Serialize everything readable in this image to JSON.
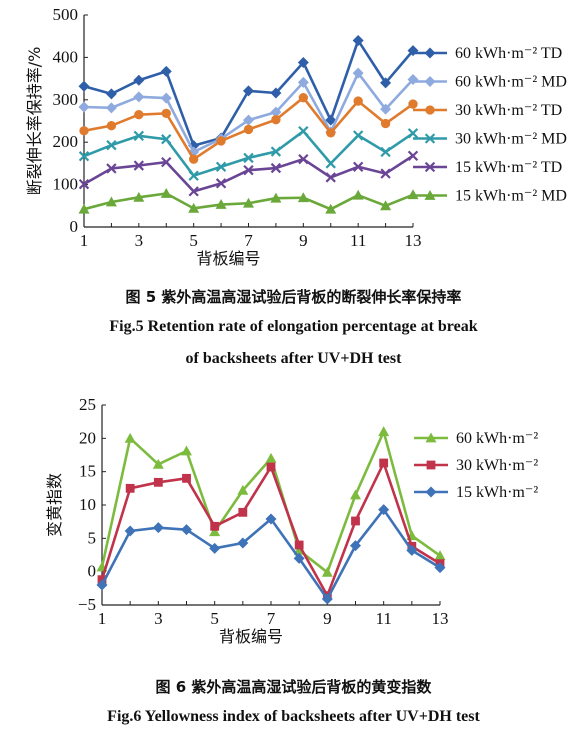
{
  "figure5": {
    "caption_zh": "图 5   紫外高温高湿试验后背板的断裂伸长率保持率",
    "caption_en_1": "Fig.5   Retention rate of elongation percentage at break",
    "caption_en_2": "of backsheets after UV+DH test"
  },
  "figure6": {
    "caption_zh": "图 6   紫外高温高湿试验后背板的黄变指数",
    "caption_en": "Fig.6   Yellowness index of backsheets after UV+DH test"
  },
  "chart_data": [
    {
      "type": "line",
      "xlabel": "背板编号",
      "ylabel": "断裂伸长率保持率/%",
      "xlim": [
        1,
        13
      ],
      "ylim": [
        0,
        500
      ],
      "xticks": [
        1,
        3,
        5,
        7,
        9,
        11,
        13
      ],
      "yticks": [
        0,
        100,
        200,
        300,
        400,
        500
      ],
      "grid": false,
      "legend_position": "top-right",
      "x": [
        1,
        2,
        3,
        4,
        5,
        6,
        7,
        8,
        9,
        10,
        11,
        12,
        13
      ],
      "series": [
        {
          "name": "60 kWh·m⁻² TD",
          "color": "#2f5fa8",
          "marker": "diamond",
          "values": [
            332,
            314,
            346,
            367,
            192,
            210,
            321,
            316,
            388,
            252,
            440,
            340,
            416
          ]
        },
        {
          "name": "60 kWh·m⁻² MD",
          "color": "#8eaadf",
          "marker": "diamond",
          "values": [
            283,
            281,
            307,
            304,
            177,
            208,
            252,
            271,
            341,
            224,
            363,
            278,
            348
          ]
        },
        {
          "name": "30 kWh·m⁻² TD",
          "color": "#e07b2e",
          "marker": "circle",
          "values": [
            227,
            239,
            265,
            268,
            160,
            203,
            230,
            253,
            305,
            222,
            297,
            244,
            290
          ]
        },
        {
          "name": "30 kWh·m⁻² MD",
          "color": "#2f9aa8",
          "marker": "x",
          "values": [
            167,
            193,
            215,
            207,
            121,
            142,
            163,
            178,
            226,
            150,
            216,
            177,
            221
          ]
        },
        {
          "name": "15 kWh·m⁻² TD",
          "color": "#6a4596",
          "marker": "x",
          "values": [
            101,
            138,
            145,
            153,
            84,
            103,
            134,
            139,
            160,
            117,
            142,
            126,
            168
          ]
        },
        {
          "name": "15 kWh·m⁻² MD",
          "color": "#6aa83a",
          "marker": "triangle",
          "values": [
            42,
            59,
            70,
            79,
            44,
            53,
            56,
            68,
            69,
            42,
            75,
            50,
            76
          ]
        }
      ]
    },
    {
      "type": "line",
      "xlabel": "背板编号",
      "ylabel": "变黄指数",
      "xlim": [
        1,
        13
      ],
      "ylim": [
        -5,
        25
      ],
      "xticks": [
        1,
        3,
        5,
        7,
        9,
        11,
        13
      ],
      "yticks": [
        -5,
        0,
        5,
        10,
        15,
        20,
        25
      ],
      "grid": false,
      "legend_position": "top-right",
      "x": [
        1,
        2,
        3,
        4,
        5,
        6,
        7,
        8,
        9,
        10,
        11,
        12,
        13
      ],
      "series": [
        {
          "name": "60 kWh·m⁻²",
          "color": "#7dbb3f",
          "marker": "triangle",
          "values": [
            0.7,
            20.0,
            16.1,
            18.1,
            6.0,
            12.2,
            17.0,
            3.2,
            -0.1,
            11.5,
            21.0,
            5.4,
            2.4
          ]
        },
        {
          "name": "30 kWh·m⁻²",
          "color": "#c0334a",
          "marker": "square",
          "values": [
            -1.2,
            12.5,
            13.4,
            14.0,
            6.8,
            8.9,
            15.7,
            4.0,
            -3.6,
            7.6,
            16.3,
            3.8,
            1.2
          ]
        },
        {
          "name": "15 kWh·m⁻²",
          "color": "#3f73b8",
          "marker": "diamond",
          "values": [
            -2.0,
            6.1,
            6.6,
            6.3,
            3.5,
            4.3,
            7.9,
            2.0,
            -4.1,
            3.9,
            9.3,
            3.2,
            0.6
          ]
        }
      ]
    }
  ]
}
